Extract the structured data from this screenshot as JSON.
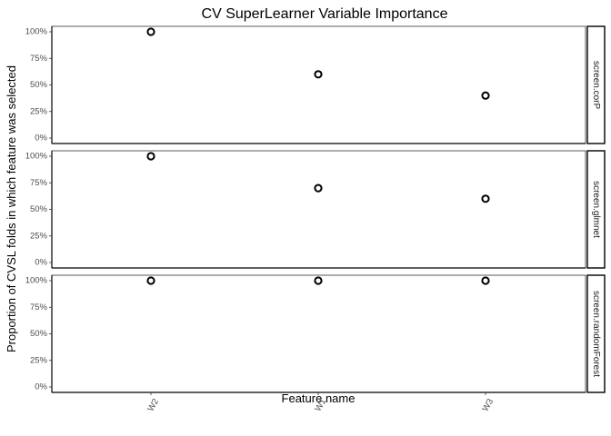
{
  "chart_data": {
    "type": "scatter",
    "title": "CV SuperLearner Variable Importance",
    "xlabel": "Feature name",
    "ylabel": "Proportion of CVSL folds in which feature was selected",
    "categories": [
      "W2",
      "W1",
      "W3"
    ],
    "yticks": [
      "0%",
      "25%",
      "50%",
      "75%",
      "100%"
    ],
    "ylim": [
      0,
      1
    ],
    "grid": false,
    "facets": [
      {
        "strip": "screen.corP",
        "values": [
          1.0,
          0.6,
          0.4
        ]
      },
      {
        "strip": "screen.glmnet",
        "values": [
          1.0,
          0.7,
          0.6
        ]
      },
      {
        "strip": "screen.randomForest",
        "values": [
          1.0,
          1.0,
          1.0
        ]
      }
    ]
  }
}
